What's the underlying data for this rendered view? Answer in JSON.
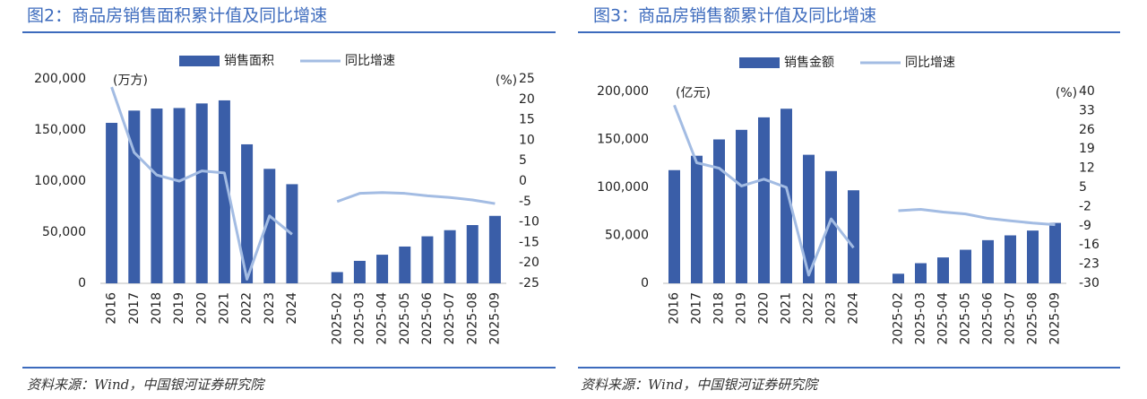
{
  "chart_data": [
    {
      "type": "bar",
      "title": "图2：商品房销售面积累计值及同比增速",
      "y_unit": "(万方)",
      "y2_unit": "(%)",
      "source": "资料来源：Wind，中国银河证券研究院",
      "categories": [
        "2016",
        "2017",
        "2018",
        "2019",
        "2020",
        "2021",
        "2022",
        "2023",
        "2024",
        null,
        "2025-02",
        "2025-03",
        "2025-04",
        "2025-05",
        "2025-06",
        "2025-07",
        "2025-08",
        "2025-09"
      ],
      "series": [
        {
          "name": "销售面积",
          "type": "bar",
          "color": "#3a5ea8",
          "values": [
            157000,
            169000,
            171000,
            171500,
            176000,
            179000,
            136000,
            112000,
            97000,
            null,
            11000,
            22000,
            28000,
            36000,
            46000,
            52000,
            57000,
            66000
          ]
        },
        {
          "name": "同比增速",
          "type": "line",
          "axis": "y2",
          "color": "#a3bce3",
          "values": [
            23,
            7,
            1.5,
            0,
            2.5,
            2,
            -24,
            -8.5,
            -13,
            null,
            -5,
            -3,
            -2.8,
            -3,
            -3.6,
            -4,
            -4.6,
            -5.5
          ]
        }
      ],
      "ylim": [
        0,
        200000
      ],
      "yticks": [
        0,
        {
          "value": 50000,
          "label": "50,000"
        },
        {
          "value": 100000,
          "label": "100,000"
        },
        {
          "value": 150000,
          "label": "150,000"
        },
        {
          "value": 200000,
          "label": "200,000"
        }
      ],
      "y2lim": [
        -25,
        25
      ],
      "y2ticks": [
        -25,
        -20,
        -15,
        -10,
        -5,
        0,
        5,
        10,
        15,
        20,
        25
      ]
    },
    {
      "type": "bar",
      "title": "图3：商品房销售额累计值及同比增速",
      "y_unit": "(亿元)",
      "y2_unit": "(%)",
      "source": "资料来源：Wind，中国银河证券研究院",
      "categories": [
        "2016",
        "2017",
        "2018",
        "2019",
        "2020",
        "2021",
        "2022",
        "2023",
        "2024",
        null,
        "2025-02",
        "2025-03",
        "2025-04",
        "2025-05",
        "2025-06",
        "2025-07",
        "2025-08",
        "2025-09"
      ],
      "series": [
        {
          "name": "销售金额",
          "type": "bar",
          "color": "#3a5ea8",
          "values": [
            118000,
            133000,
            150000,
            160000,
            173000,
            182000,
            134000,
            117000,
            97000,
            null,
            10000,
            21000,
            27000,
            35000,
            45000,
            50000,
            55000,
            63000
          ]
        },
        {
          "name": "同比增速",
          "type": "line",
          "axis": "y2",
          "color": "#a3bce3",
          "values": [
            35,
            14,
            12,
            5.5,
            8,
            5,
            -27,
            -6.5,
            -17,
            null,
            -3.5,
            -3,
            -4,
            -4.7,
            -6.3,
            -7.2,
            -8,
            -8.6
          ]
        }
      ],
      "ylim": [
        0,
        200000
      ],
      "yticks": [
        0,
        {
          "value": 50000,
          "label": "50,000"
        },
        {
          "value": 100000,
          "label": "100,000"
        },
        {
          "value": 150000,
          "label": "150,000"
        },
        {
          "value": 200000,
          "label": "200,000"
        }
      ],
      "y2lim": [
        -30,
        40
      ],
      "y2ticks": [
        -30,
        -23,
        -16,
        -9,
        -2,
        5,
        12,
        19,
        26,
        33,
        40
      ]
    }
  ]
}
